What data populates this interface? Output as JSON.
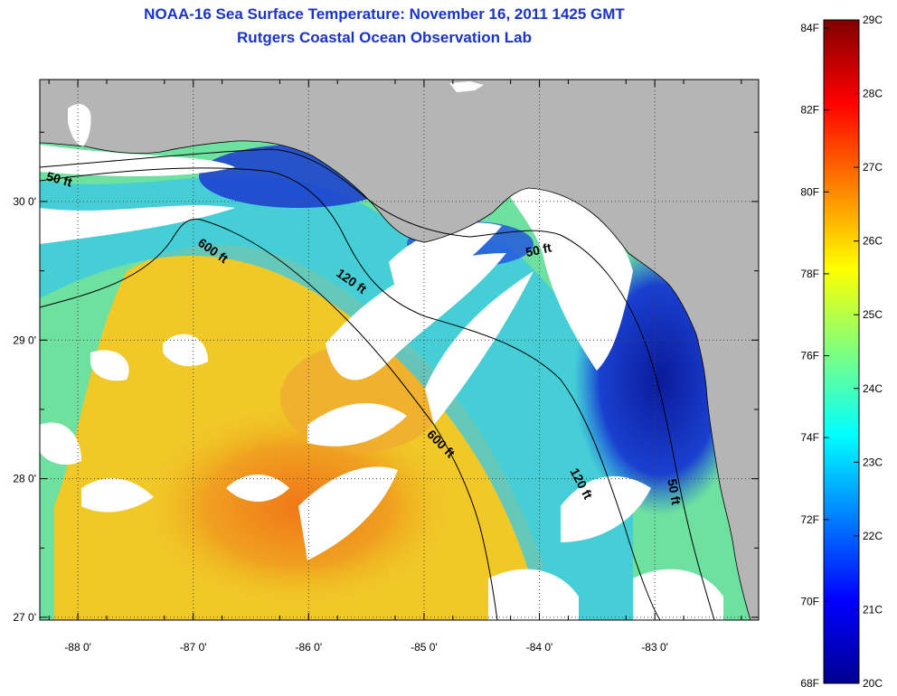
{
  "header": {
    "title": "NOAA-16 Sea Surface Temperature:  November 16, 2011 1425 GMT",
    "subtitle": "Rutgers Coastal Ocean Observation Lab"
  },
  "map": {
    "lon_range": [
      -88.33,
      -82.1
    ],
    "lat_range": [
      26.98,
      30.88
    ],
    "x_ticks": [
      {
        "lon": -88,
        "label": "-88 0'"
      },
      {
        "lon": -87,
        "label": "-87 0'"
      },
      {
        "lon": -86,
        "label": "-86 0'"
      },
      {
        "lon": -85,
        "label": "-85 0'"
      },
      {
        "lon": -84,
        "label": "-84 0'"
      },
      {
        "lon": -83,
        "label": "-83 0'"
      }
    ],
    "y_ticks": [
      {
        "lat": 27,
        "label": "27 0'"
      },
      {
        "lat": 28,
        "label": "28 0'"
      },
      {
        "lat": 29,
        "label": "29 0'"
      },
      {
        "lat": 30,
        "label": "30 0'"
      }
    ],
    "land_color": "#b5b5b5",
    "cloud_color": "#ffffff",
    "contour_labels": [
      {
        "text": "50 ft",
        "lon": -88.17,
        "lat": 30.13,
        "angle": 15
      },
      {
        "text": "600 ft",
        "lon": -86.85,
        "lat": 29.62,
        "angle": 35
      },
      {
        "text": "120 ft",
        "lon": -85.65,
        "lat": 29.4,
        "angle": 35
      },
      {
        "text": "50 ft",
        "lon": -84.0,
        "lat": 29.62,
        "angle": -12
      },
      {
        "text": "600 ft",
        "lon": -84.88,
        "lat": 28.23,
        "angle": 45
      },
      {
        "text": "120 ft",
        "lon": -83.67,
        "lat": 27.95,
        "angle": 62
      },
      {
        "text": "50 ft",
        "lon": -82.87,
        "lat": 27.9,
        "angle": 80
      }
    ]
  },
  "colorbar": {
    "fahrenheit_labels": [
      "84F",
      "82F",
      "80F",
      "78F",
      "76F",
      "74F",
      "72F",
      "70F",
      "68F"
    ],
    "celsius_labels": [
      "29C",
      "28C",
      "27C",
      "26C",
      "25C",
      "24C",
      "23C",
      "22C",
      "21C",
      "20C"
    ],
    "c_min": 20,
    "c_max": 29,
    "palette": "jet"
  }
}
